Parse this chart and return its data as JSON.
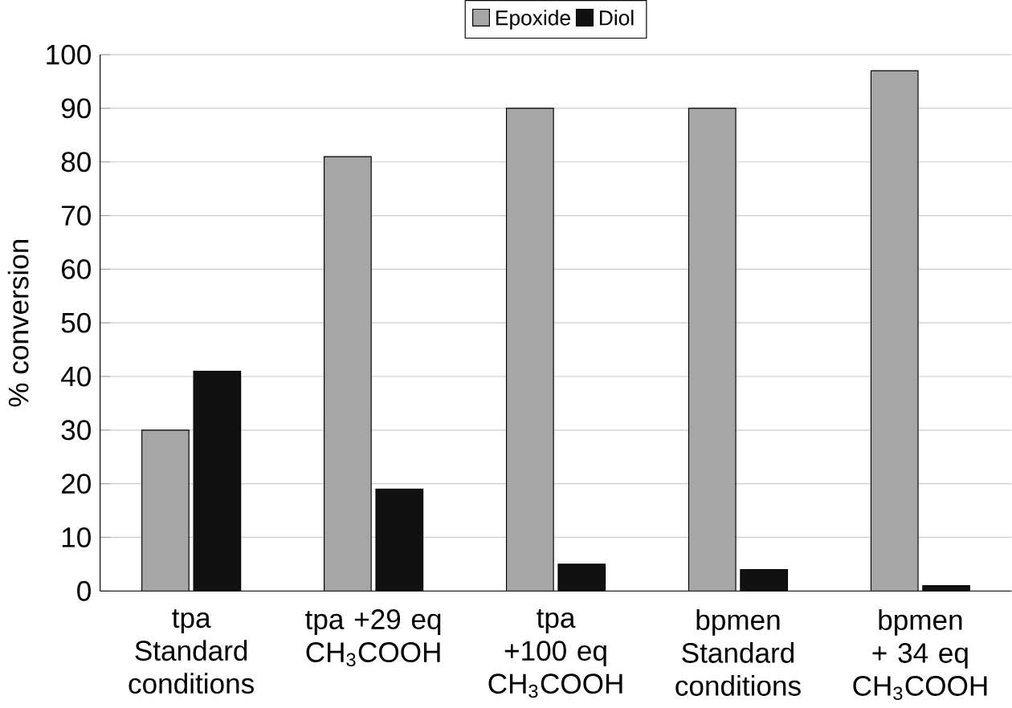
{
  "chart_data": {
    "type": "bar",
    "ylabel": "% conversion",
    "categories": [
      "tpa Standard conditions",
      "tpa +29 eq CH$_{3}$COOH",
      "tpa +100 eq CH$_{3}$COOH",
      "bpmen Standard conditions",
      "bpmen + 34 eq CH$_{3}$COOH"
    ],
    "series": [
      {
        "name": "Epoxide",
        "color": "#a6a6a6",
        "values": [
          30,
          81,
          90,
          90,
          97
        ]
      },
      {
        "name": "Diol",
        "color": "#111111",
        "values": [
          41,
          19,
          5,
          4,
          1
        ]
      }
    ],
    "ylim": [
      0,
      100
    ],
    "yticks": [
      0,
      10,
      20,
      30,
      40,
      50,
      60,
      70,
      80,
      90,
      100
    ],
    "grid": "y",
    "legend": "top"
  }
}
